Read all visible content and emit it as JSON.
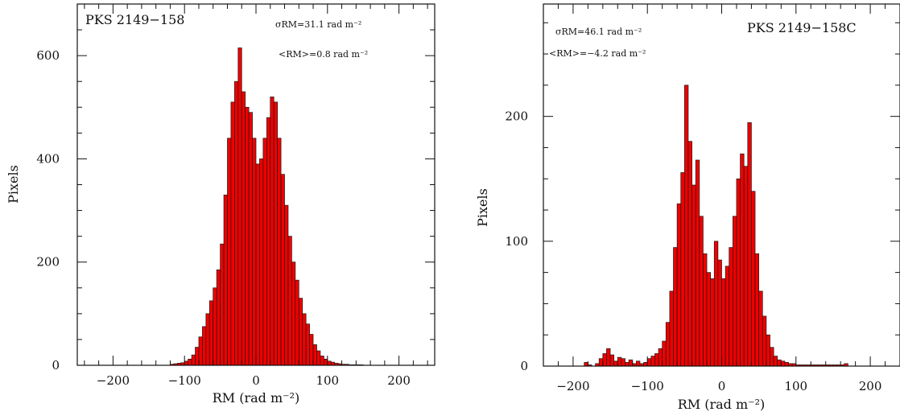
{
  "chart_data": [
    {
      "type": "bar",
      "source": "PKS 2149−158",
      "annotations": [
        "σRM=31.1 rad m⁻²",
        "<RM>=0.8 rad m⁻²"
      ],
      "xlabel": "RM (rad m⁻²)",
      "ylabel": "Pixels",
      "xlim": [
        -250,
        250
      ],
      "ylim": [
        0,
        700
      ],
      "x_ticks": [
        -200,
        -100,
        0,
        100,
        200
      ],
      "x_tick_labels": [
        "−200",
        "−100",
        "0",
        "100",
        "200"
      ],
      "y_ticks": [
        0,
        200,
        400,
        600
      ],
      "y_tick_labels": [
        "0",
        "200",
        "400",
        "600"
      ],
      "bin_width": 5,
      "bins_start": [
        -120,
        -115,
        -110,
        -105,
        -100,
        -95,
        -90,
        -85,
        -80,
        -75,
        -70,
        -65,
        -60,
        -55,
        -50,
        -45,
        -40,
        -35,
        -30,
        -25,
        -20,
        -15,
        -10,
        -5,
        0,
        5,
        10,
        15,
        20,
        25,
        30,
        35,
        40,
        45,
        50,
        55,
        60,
        65,
        70,
        75,
        80,
        85,
        90,
        95,
        100,
        105,
        110,
        115,
        120,
        125,
        130,
        135,
        140,
        145
      ],
      "values": [
        2,
        3,
        4,
        5,
        8,
        12,
        20,
        35,
        55,
        75,
        100,
        125,
        150,
        185,
        235,
        330,
        440,
        510,
        550,
        615,
        530,
        500,
        490,
        440,
        390,
        400,
        440,
        480,
        520,
        510,
        440,
        370,
        310,
        250,
        200,
        165,
        130,
        100,
        80,
        60,
        40,
        28,
        18,
        12,
        8,
        6,
        4,
        3,
        2,
        2,
        1,
        1,
        1,
        1
      ]
    },
    {
      "type": "bar",
      "source": "PKS 2149−158C",
      "annotations": [
        "σRM=46.1 rad m⁻²",
        "<RM>=−4.2 rad m⁻²"
      ],
      "xlabel": "RM (rad m⁻²)",
      "ylabel": "Pixels",
      "xlim": [
        -240,
        240
      ],
      "ylim": [
        0,
        290
      ],
      "x_ticks": [
        -200,
        -100,
        0,
        100,
        200
      ],
      "x_tick_labels": [
        "−200",
        "−100",
        "0",
        "100",
        "200"
      ],
      "y_ticks": [
        0,
        100,
        200
      ],
      "y_tick_labels": [
        "0",
        "100",
        "200"
      ],
      "bin_width": 5,
      "bins_start": [
        -185,
        -180,
        -175,
        -170,
        -165,
        -160,
        -155,
        -150,
        -145,
        -140,
        -135,
        -130,
        -125,
        -120,
        -115,
        -110,
        -105,
        -100,
        -95,
        -90,
        -85,
        -80,
        -75,
        -70,
        -65,
        -60,
        -55,
        -50,
        -45,
        -40,
        -35,
        -30,
        -25,
        -20,
        -15,
        -10,
        -5,
        0,
        5,
        10,
        15,
        20,
        25,
        30,
        35,
        40,
        45,
        50,
        55,
        60,
        65,
        70,
        75,
        80,
        85,
        90,
        95,
        100,
        105,
        110,
        115,
        120,
        125,
        130,
        135,
        140,
        145,
        150,
        155,
        160,
        165,
        170,
        175,
        180,
        185
      ],
      "values": [
        3,
        1,
        0,
        2,
        6,
        10,
        14,
        9,
        4,
        7,
        6,
        3,
        5,
        2,
        4,
        2,
        3,
        6,
        8,
        10,
        14,
        20,
        35,
        60,
        95,
        130,
        155,
        225,
        180,
        145,
        165,
        120,
        90,
        75,
        70,
        100,
        85,
        70,
        80,
        95,
        120,
        150,
        170,
        160,
        195,
        140,
        90,
        60,
        40,
        25,
        15,
        8,
        5,
        4,
        3,
        2,
        2,
        1,
        1,
        1,
        1,
        1,
        1,
        1,
        1,
        1,
        1,
        1,
        1,
        1,
        2,
        0,
        0,
        0,
        0
      ]
    }
  ],
  "colors": {
    "fill": "#ee0000",
    "outline": "#1a1a1a",
    "axis": "#111111"
  }
}
